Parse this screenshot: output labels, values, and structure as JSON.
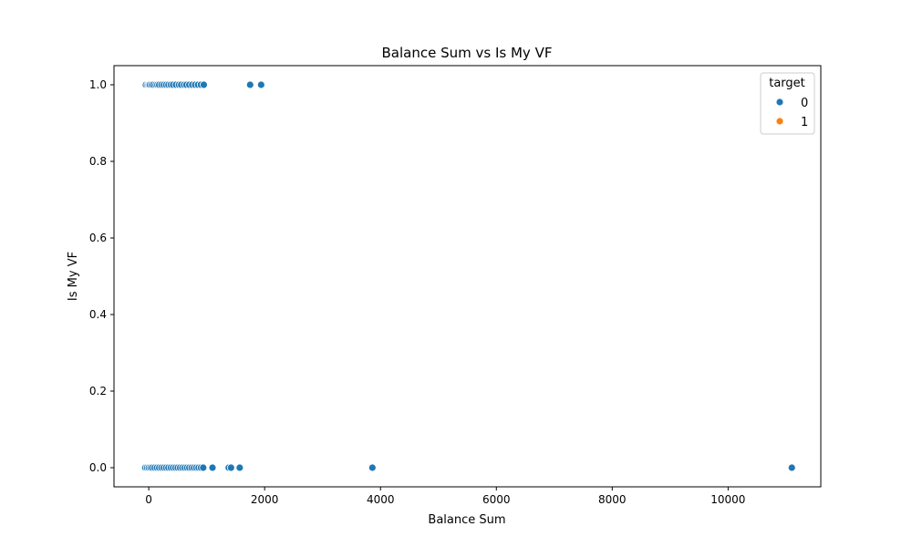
{
  "chart_data": {
    "type": "scatter",
    "title": "Balance Sum vs Is My VF",
    "xlabel": "Balance Sum",
    "ylabel": "Is My VF",
    "xlim": [
      -600,
      11600
    ],
    "ylim": [
      -0.05,
      1.05
    ],
    "xticks": [
      0,
      2000,
      4000,
      6000,
      8000,
      10000
    ],
    "yticks": [
      0.0,
      0.2,
      0.4,
      0.6,
      0.8,
      1.0
    ],
    "xtick_labels": [
      "0",
      "2000",
      "4000",
      "6000",
      "8000",
      "10000"
    ],
    "ytick_labels": [
      "0.0",
      "0.2",
      "0.4",
      "0.6",
      "0.8",
      "1.0"
    ],
    "grid": false,
    "legend": {
      "title": "target",
      "placement": "top-right",
      "entries": [
        {
          "label": "0",
          "color": "#1f77b4"
        },
        {
          "label": "1",
          "color": "#ff7f0e"
        }
      ]
    },
    "series": [
      {
        "name": "0",
        "color": "#1f77b4",
        "points": [
          [
            -50,
            1
          ],
          [
            -20,
            1
          ],
          [
            0,
            1
          ],
          [
            20,
            1
          ],
          [
            50,
            1
          ],
          [
            80,
            1
          ],
          [
            120,
            1
          ],
          [
            150,
            1
          ],
          [
            180,
            1
          ],
          [
            220,
            1
          ],
          [
            260,
            1
          ],
          [
            300,
            1
          ],
          [
            340,
            1
          ],
          [
            380,
            1
          ],
          [
            420,
            1
          ],
          [
            470,
            1
          ],
          [
            520,
            1
          ],
          [
            560,
            1
          ],
          [
            610,
            1
          ],
          [
            650,
            1
          ],
          [
            700,
            1
          ],
          [
            750,
            1
          ],
          [
            800,
            1
          ],
          [
            850,
            1
          ],
          [
            900,
            1
          ],
          [
            950,
            1
          ],
          [
            1750,
            1
          ],
          [
            1940,
            1
          ],
          [
            -60,
            0
          ],
          [
            -30,
            0
          ],
          [
            0,
            0
          ],
          [
            30,
            0
          ],
          [
            60,
            0
          ],
          [
            100,
            0
          ],
          [
            140,
            0
          ],
          [
            180,
            0
          ],
          [
            220,
            0
          ],
          [
            260,
            0
          ],
          [
            300,
            0
          ],
          [
            340,
            0
          ],
          [
            380,
            0
          ],
          [
            420,
            0
          ],
          [
            460,
            0
          ],
          [
            500,
            0
          ],
          [
            540,
            0
          ],
          [
            580,
            0
          ],
          [
            620,
            0
          ],
          [
            660,
            0
          ],
          [
            700,
            0
          ],
          [
            740,
            0
          ],
          [
            780,
            0
          ],
          [
            820,
            0
          ],
          [
            860,
            0
          ],
          [
            900,
            0
          ],
          [
            940,
            0
          ],
          [
            1100,
            0
          ],
          [
            1380,
            0
          ],
          [
            1420,
            0
          ],
          [
            1570,
            0
          ],
          [
            3860,
            0
          ],
          [
            11100,
            0
          ]
        ]
      },
      {
        "name": "1",
        "color": "#ff7f0e",
        "points": []
      }
    ]
  }
}
